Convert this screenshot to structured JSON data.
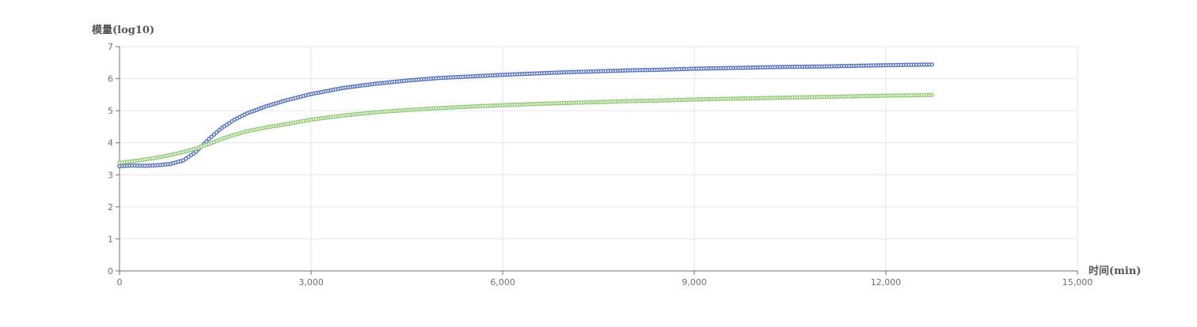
{
  "chart_data": {
    "type": "scatter",
    "ylabel": "模量(log10)",
    "xlabel": "时间(min)",
    "xlim": [
      0,
      15000
    ],
    "ylim": [
      0,
      7
    ],
    "x_ticks": [
      0,
      3000,
      6000,
      9000,
      12000,
      15000
    ],
    "x_tick_labels": [
      "0",
      "3,000",
      "6,000",
      "9,000",
      "12,000",
      "15,000"
    ],
    "y_ticks": [
      0,
      1,
      2,
      3,
      4,
      5,
      6,
      7
    ],
    "y_tick_labels": [
      "0",
      "1",
      "2",
      "3",
      "4",
      "5",
      "6",
      "7"
    ],
    "grid": true,
    "series": [
      {
        "color": "#5470c6",
        "points": [
          [
            0,
            3.27
          ],
          [
            200,
            3.29
          ],
          [
            400,
            3.28
          ],
          [
            600,
            3.3
          ],
          [
            800,
            3.34
          ],
          [
            1000,
            3.45
          ],
          [
            1200,
            3.72
          ],
          [
            1400,
            4.12
          ],
          [
            1600,
            4.46
          ],
          [
            1800,
            4.72
          ],
          [
            2000,
            4.92
          ],
          [
            2300,
            5.14
          ],
          [
            2600,
            5.32
          ],
          [
            3000,
            5.52
          ],
          [
            3500,
            5.71
          ],
          [
            4000,
            5.84
          ],
          [
            4500,
            5.94
          ],
          [
            5000,
            6.02
          ],
          [
            5500,
            6.07
          ],
          [
            6000,
            6.12
          ],
          [
            6500,
            6.16
          ],
          [
            7000,
            6.2
          ],
          [
            7500,
            6.23
          ],
          [
            8000,
            6.26
          ],
          [
            8500,
            6.28
          ],
          [
            9000,
            6.31
          ],
          [
            9500,
            6.33
          ],
          [
            10000,
            6.35
          ],
          [
            10500,
            6.37
          ],
          [
            11000,
            6.38
          ],
          [
            11500,
            6.4
          ],
          [
            12000,
            6.42
          ],
          [
            12720,
            6.44
          ]
        ]
      },
      {
        "color": "#91cc75",
        "points": [
          [
            0,
            3.38
          ],
          [
            200,
            3.42
          ],
          [
            400,
            3.48
          ],
          [
            600,
            3.54
          ],
          [
            800,
            3.62
          ],
          [
            1000,
            3.71
          ],
          [
            1200,
            3.82
          ],
          [
            1400,
            3.96
          ],
          [
            1600,
            4.12
          ],
          [
            1800,
            4.25
          ],
          [
            2000,
            4.36
          ],
          [
            2300,
            4.48
          ],
          [
            2600,
            4.58
          ],
          [
            3000,
            4.72
          ],
          [
            3500,
            4.85
          ],
          [
            4000,
            4.95
          ],
          [
            4500,
            5.02
          ],
          [
            5000,
            5.08
          ],
          [
            5500,
            5.13
          ],
          [
            6000,
            5.17
          ],
          [
            6500,
            5.21
          ],
          [
            7000,
            5.24
          ],
          [
            7500,
            5.27
          ],
          [
            8000,
            5.3
          ],
          [
            8500,
            5.32
          ],
          [
            9000,
            5.35
          ],
          [
            9500,
            5.37
          ],
          [
            10000,
            5.39
          ],
          [
            10500,
            5.41
          ],
          [
            11000,
            5.43
          ],
          [
            11500,
            5.45
          ],
          [
            12000,
            5.47
          ],
          [
            12720,
            5.49
          ]
        ]
      }
    ]
  }
}
